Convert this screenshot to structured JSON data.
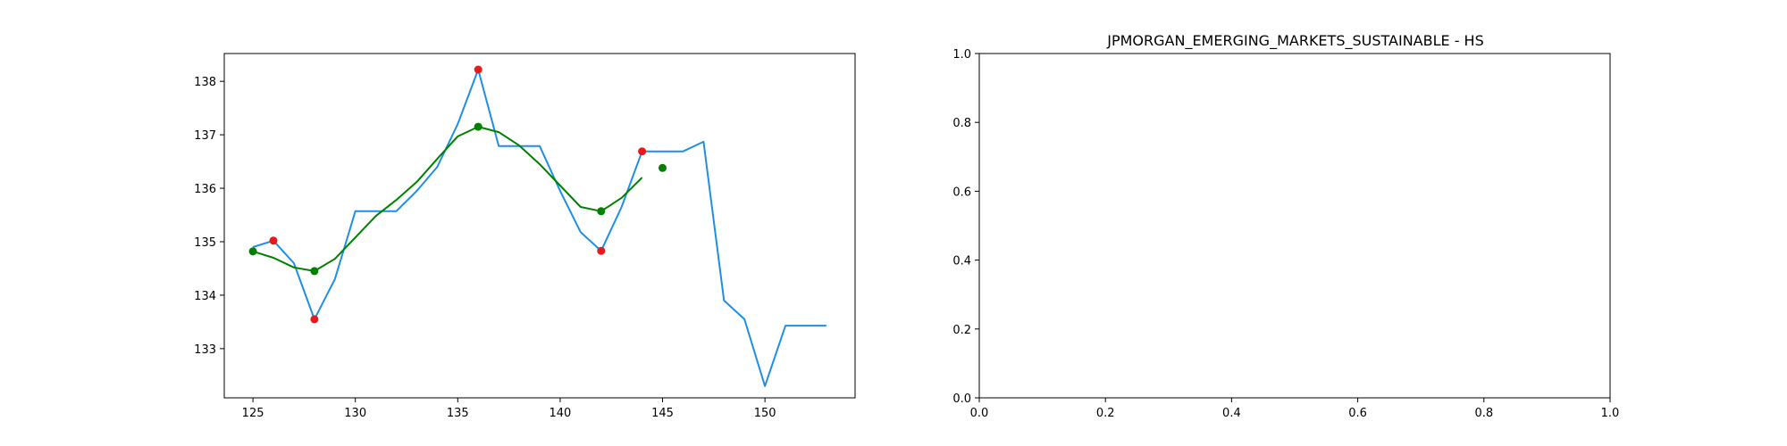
{
  "chart_data": [
    {
      "type": "line",
      "title": "",
      "xlabel": "",
      "ylabel": "",
      "xlim": [
        123.6,
        154.4
      ],
      "ylim": [
        132.08,
        138.52
      ],
      "xticks": [
        125,
        130,
        135,
        140,
        145,
        150
      ],
      "yticks": [
        133,
        134,
        135,
        136,
        137,
        138
      ],
      "series": [
        {
          "kind": "line",
          "color": "#1f8fe6",
          "x": [
            125,
            126,
            127,
            128,
            129,
            130,
            131,
            132,
            133,
            134,
            135,
            136,
            137,
            138,
            139,
            140,
            141,
            142,
            143,
            144,
            145,
            146,
            147,
            148,
            149,
            150,
            151,
            152,
            153
          ],
          "y": [
            134.9,
            135.02,
            134.6,
            133.55,
            134.3,
            135.57,
            135.57,
            135.57,
            135.95,
            136.4,
            137.2,
            138.22,
            136.79,
            136.79,
            136.79,
            135.95,
            135.18,
            134.83,
            135.65,
            136.69,
            136.69,
            136.69,
            136.87,
            133.9,
            133.55,
            132.3,
            133.43,
            133.43,
            133.43
          ]
        },
        {
          "kind": "line",
          "color": "#008000",
          "x": [
            125,
            126,
            127,
            128,
            129,
            130,
            131,
            132,
            133,
            134,
            135,
            136,
            137,
            138,
            139,
            140,
            141,
            142,
            143,
            144
          ],
          "y": [
            134.82,
            134.7,
            134.52,
            134.45,
            134.68,
            135.08,
            135.48,
            135.78,
            136.12,
            136.55,
            136.97,
            137.15,
            137.05,
            136.8,
            136.45,
            136.05,
            135.65,
            135.57,
            135.82,
            136.2
          ]
        },
        {
          "kind": "scatter",
          "color": "#e41a1c",
          "x": [
            126,
            128,
            136,
            142,
            144
          ],
          "y": [
            135.02,
            133.55,
            138.22,
            134.83,
            136.69
          ]
        },
        {
          "kind": "scatter",
          "color": "#008000",
          "x": [
            125,
            128,
            136,
            142,
            145
          ],
          "y": [
            134.82,
            134.45,
            137.15,
            135.57,
            136.38
          ]
        }
      ]
    },
    {
      "type": "line",
      "title": "JPMORGAN_EMERGING_MARKETS_SUSTAINABLE - HS",
      "xlabel": "",
      "ylabel": "",
      "xlim": [
        0,
        1
      ],
      "ylim": [
        0,
        1
      ],
      "xticks": [
        0.0,
        0.2,
        0.4,
        0.6,
        0.8,
        1.0
      ],
      "yticks": [
        0.0,
        0.2,
        0.4,
        0.6,
        0.8,
        1.0
      ],
      "tick_format": "0.0",
      "series": []
    }
  ]
}
